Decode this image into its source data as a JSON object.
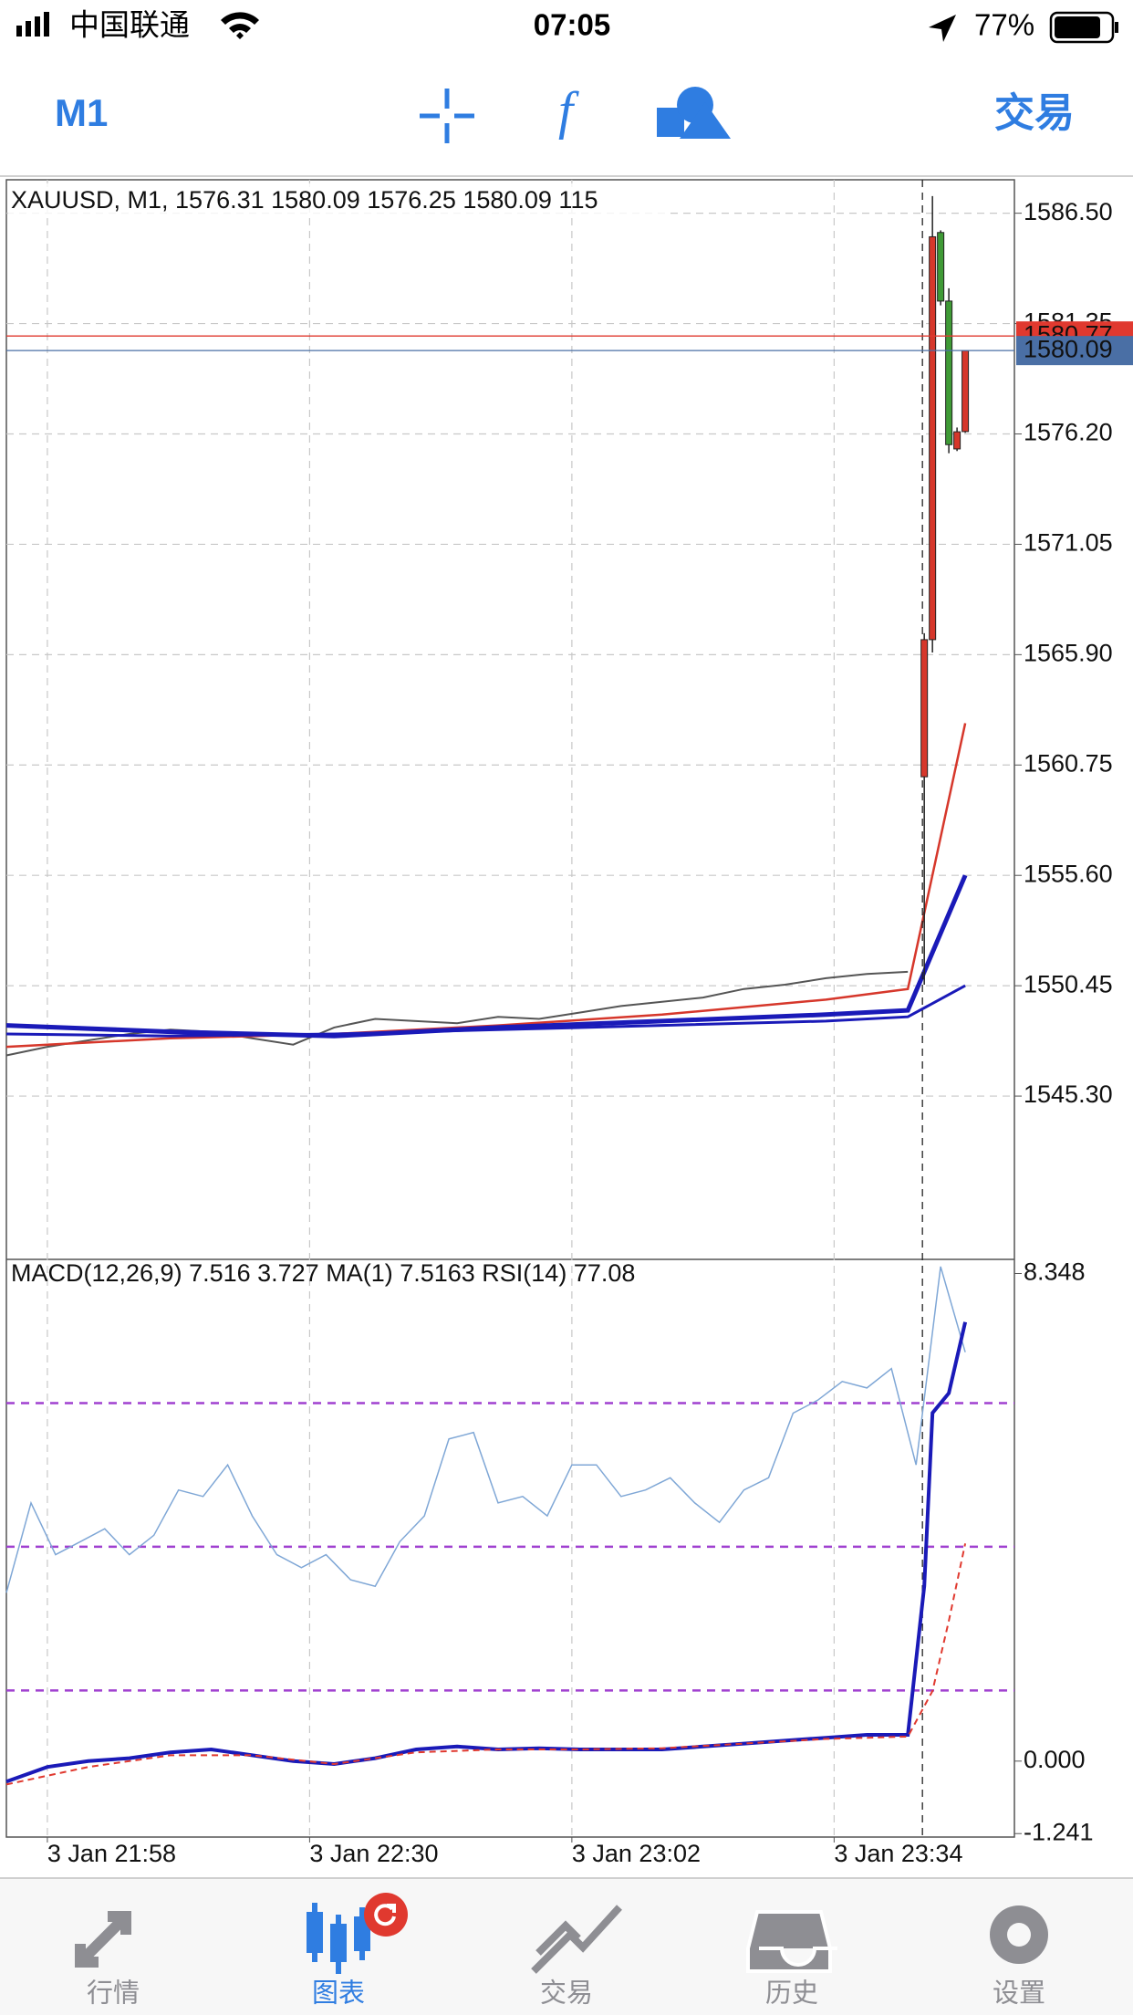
{
  "status_bar": {
    "carrier": "中国联通",
    "time": "07:05",
    "battery": "77%"
  },
  "toolbar": {
    "timeframe": "M1",
    "trade": "交易"
  },
  "tabs": [
    "行情",
    "图表",
    "交易",
    "历史",
    "设置"
  ],
  "chart_data": [
    {
      "type": "candlestick",
      "title": "XAUUSD, M1, 1576.31 1580.09 1576.25 1580.09 115",
      "xlim": [
        0,
        123
      ],
      "xticks": [
        {
          "value": 5,
          "label": "3 Jan 21:58"
        },
        {
          "value": 37,
          "label": "3 Jan 22:30"
        },
        {
          "value": 69,
          "label": "3 Jan 23:02"
        },
        {
          "value": 101,
          "label": "3 Jan 23:34"
        }
      ],
      "ylim": [
        1537.68,
        1588.06
      ],
      "yticks": [
        {
          "value": 1586.5,
          "label": "1586.50"
        },
        1581.35,
        {
          "value": 1576.2,
          "label": "1576.20"
        },
        {
          "value": 1571.05,
          "label": "1571.05"
        },
        {
          "value": 1565.9,
          "label": "1565.90"
        },
        {
          "value": 1560.75,
          "label": "1560.75"
        },
        {
          "value": 1555.6,
          "label": "1555.60"
        },
        1550.45,
        {
          "value": 1545.3,
          "label": "1545.30"
        }
      ],
      "grid": true,
      "up_color": "#d6372b",
      "down_color": "#3f9a36",
      "candles": {
        "x": [
          112,
          113,
          114,
          115,
          116,
          117
        ],
        "open": [
          1560.2,
          1566.6,
          1585.6,
          1582.4,
          1575.5,
          1576.31
        ],
        "high": [
          1566.9,
          1587.3,
          1585.7,
          1583.0,
          1576.5,
          1580.09
        ],
        "low": [
          1550.5,
          1566.0,
          1582.2,
          1575.3,
          1575.4,
          1576.25
        ],
        "close": [
          1566.6,
          1585.4,
          1582.4,
          1575.7,
          1576.3,
          1580.09
        ]
      },
      "series": [
        {
          "color": "#555555",
          "x": [
            0,
            5,
            10,
            15,
            20,
            25,
            30,
            35,
            40,
            45,
            50,
            55,
            60,
            65,
            70,
            75,
            80,
            85,
            90,
            95,
            100,
            105,
            110
          ],
          "values": [
            1547.2,
            1547.6,
            1547.9,
            1548.2,
            1548.4,
            1548.3,
            1548.0,
            1547.7,
            1548.5,
            1548.9,
            1548.8,
            1548.7,
            1549.0,
            1548.9,
            1549.2,
            1549.5,
            1549.7,
            1549.9,
            1550.3,
            1550.5,
            1550.8,
            1551.0,
            1551.1
          ]
        },
        {
          "color": "#d6372b",
          "x": [
            0,
            20,
            40,
            60,
            80,
            100,
            110,
            117
          ],
          "values": [
            1547.6,
            1548.0,
            1548.2,
            1548.6,
            1549.1,
            1549.8,
            1550.3,
            1562.7
          ]
        },
        {
          "color": "#1a1ab8",
          "x": [
            0,
            20,
            40,
            60,
            80,
            100,
            110,
            117
          ],
          "values": [
            1548.6,
            1548.3,
            1548.1,
            1548.5,
            1548.8,
            1549.1,
            1549.3,
            1555.6
          ]
        },
        {
          "color": "#1a1ab8",
          "x": [
            0,
            20,
            40,
            60,
            80,
            100,
            110,
            117
          ],
          "values": [
            1548.2,
            1548.1,
            1548.2,
            1548.4,
            1548.6,
            1548.8,
            1549.0,
            1550.45
          ]
        }
      ],
      "price_lines": [
        {
          "value": 1580.77,
          "color": "#e0392f"
        },
        {
          "value": 1580.09,
          "color": "#4a6fa5"
        }
      ]
    },
    {
      "type": "line",
      "title": "MACD(12,26,9) 7.516 3.727 MA(1) 7.5163 RSI(14) 77.08",
      "ylim": [
        -1.3,
        8.59
      ],
      "yticks": [
        8.348,
        {
          "value": 0,
          "label": "0.000"
        },
        -1.241
      ],
      "y2lim": [
        9.6,
        90
      ],
      "y2_levels": [
        70,
        50,
        30
      ],
      "series": [
        {
          "color": "#7fa7d6",
          "axis": "y2",
          "x": [
            0,
            3,
            6,
            9,
            12,
            15,
            18,
            21,
            24,
            27,
            30,
            33,
            36,
            39,
            42,
            45,
            48,
            51,
            54,
            57,
            60,
            63,
            66,
            69,
            72,
            75,
            78,
            81,
            84,
            87,
            90,
            93,
            96,
            99,
            102,
            105,
            108,
            111,
            114,
            117
          ],
          "values": [
            43.6,
            56.1,
            48.9,
            50.7,
            52.5,
            48.9,
            51.6,
            57.9,
            57.0,
            61.4,
            54.3,
            48.9,
            47.1,
            48.9,
            45.4,
            44.5,
            50.7,
            54.3,
            65.0,
            65.9,
            56.1,
            57.0,
            54.3,
            61.4,
            61.4,
            57.0,
            57.9,
            59.6,
            56.1,
            53.4,
            57.9,
            59.6,
            68.6,
            70.4,
            73.0,
            72.1,
            74.8,
            61.4,
            89.0,
            77.08
          ]
        },
        {
          "color": "#1a1ab8",
          "x": [
            0,
            5,
            10,
            15,
            20,
            25,
            30,
            35,
            40,
            45,
            50,
            55,
            60,
            65,
            70,
            75,
            80,
            85,
            90,
            95,
            100,
            105,
            110,
            112,
            113,
            115,
            117
          ],
          "values": [
            -0.35,
            -0.1,
            0.0,
            0.05,
            0.15,
            0.2,
            0.1,
            0.0,
            -0.05,
            0.05,
            0.2,
            0.25,
            0.2,
            0.22,
            0.2,
            0.2,
            0.2,
            0.25,
            0.3,
            0.35,
            0.4,
            0.45,
            0.45,
            3.0,
            5.96,
            6.3,
            7.516
          ]
        },
        {
          "color": "#e0392f",
          "dashed": true,
          "x": [
            0,
            10,
            20,
            30,
            40,
            50,
            60,
            70,
            80,
            90,
            100,
            110,
            113,
            115,
            117
          ],
          "values": [
            -0.4,
            -0.1,
            0.1,
            0.1,
            -0.05,
            0.15,
            0.2,
            0.2,
            0.22,
            0.3,
            0.38,
            0.42,
            1.2,
            2.4,
            3.727
          ]
        }
      ]
    }
  ]
}
